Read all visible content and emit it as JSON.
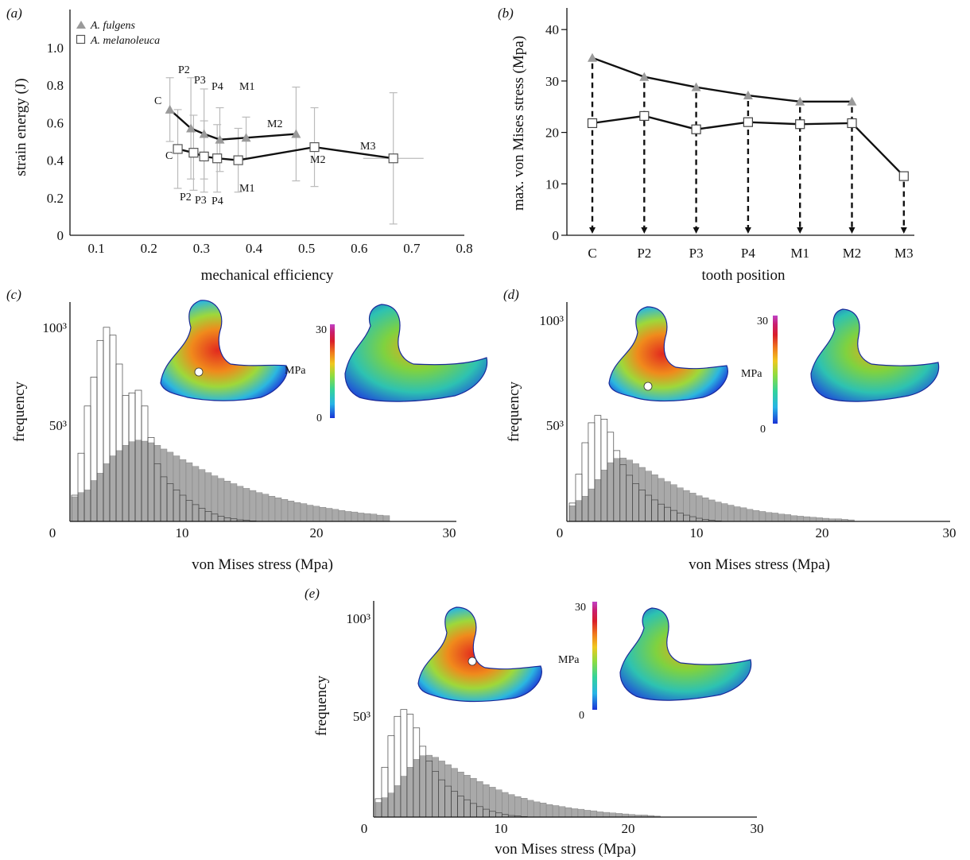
{
  "colors": {
    "fulgens": "#9a9a9a",
    "melanoleuca_face": "#ffffff",
    "line": "#111111",
    "errorbar": "#bbbbbb",
    "hist_fill_grey": "#a9a9a9",
    "hist_outline": "#444444",
    "colorbar": [
      "#1a33d6",
      "#27b3e6",
      "#33d39b",
      "#8fdc3f",
      "#f0c81e",
      "#f0791c",
      "#d91e2a",
      "#c91e70",
      "#c042c6"
    ]
  },
  "chart_data": [
    {
      "panel": "(a)",
      "type": "scatter",
      "xlabel": "mechanical efficiency",
      "ylabel": "strain energy (J)",
      "xlim": [
        0.05,
        0.8
      ],
      "ylim": [
        0,
        1.15
      ],
      "xticks": [
        "0.1",
        "0.2",
        "0.3",
        "0.4",
        "0.5",
        "0.6",
        "0.7",
        "0.8"
      ],
      "yticks": [
        "0",
        "0.2",
        "0.4",
        "0.6",
        "0.8",
        "1.0"
      ],
      "legend": [
        "A. fulgens",
        "A. melanoleuca"
      ],
      "legend_position": "top-left",
      "series": [
        {
          "name": "A. fulgens",
          "marker": "triangle",
          "points": [
            {
              "label": "C",
              "x": 0.24,
              "y": 0.67,
              "err": 0.17
            },
            {
              "label": "P2",
              "x": 0.28,
              "y": 0.57,
              "err": 0.27
            },
            {
              "label": "P3",
              "x": 0.305,
              "y": 0.54,
              "err": 0.24
            },
            {
              "label": "P4",
              "x": 0.335,
              "y": 0.51,
              "err": 0.17
            },
            {
              "label": "M1",
              "x": 0.385,
              "y": 0.52,
              "err": 0.11
            },
            {
              "label": "M2",
              "x": 0.48,
              "y": 0.54,
              "err": 0.25
            }
          ]
        },
        {
          "name": "A. melanoleuca",
          "marker": "square",
          "points": [
            {
              "label": "C",
              "x": 0.255,
              "y": 0.46,
              "err": 0.21
            },
            {
              "label": "P2",
              "x": 0.285,
              "y": 0.44,
              "err": 0.2
            },
            {
              "label": "P3",
              "x": 0.305,
              "y": 0.42,
              "err": 0.19
            },
            {
              "label": "P4",
              "x": 0.33,
              "y": 0.41,
              "err": 0.18
            },
            {
              "label": "M1",
              "x": 0.37,
              "y": 0.4,
              "err": 0.17
            },
            {
              "label": "M2",
              "x": 0.515,
              "y": 0.47,
              "err": 0.21
            },
            {
              "label": "M3",
              "x": 0.665,
              "y": 0.41,
              "err": 0.35
            }
          ]
        }
      ]
    },
    {
      "panel": "(b)",
      "type": "line",
      "xlabel": "tooth position",
      "ylabel": "max. von Mises stress (Mpa)",
      "categories": [
        "C",
        "P2",
        "P3",
        "P4",
        "M1",
        "M2",
        "M3"
      ],
      "ylim": [
        0,
        43
      ],
      "yticks": [
        "0",
        "10",
        "20",
        "30",
        "40"
      ],
      "series": [
        {
          "name": "A. fulgens",
          "marker": "triangle",
          "values": [
            34.5,
            30.8,
            28.8,
            27.2,
            26.0,
            26.0,
            null
          ]
        },
        {
          "name": "A. melanoleuca",
          "marker": "square",
          "values": [
            21.8,
            23.2,
            20.6,
            22.0,
            21.6,
            21.8,
            11.5
          ]
        }
      ]
    },
    {
      "panel": "(c)",
      "type": "bar",
      "xlabel": "von Mises stress (Mpa)",
      "ylabel": "frequency",
      "xlim": [
        0,
        30
      ],
      "xticks": [
        "0",
        "10",
        "20",
        "30"
      ],
      "yticks": [
        "0",
        "50³",
        "100³"
      ],
      "colorbar": {
        "top": "30",
        "bottom": "0",
        "unit": "MPa"
      },
      "series": [
        {
          "name": "grey",
          "values": [
            0.47,
            0.55,
            0.6,
            0.78,
            0.92,
            1.1,
            1.25,
            1.35,
            1.45,
            1.52,
            1.55,
            1.53,
            1.5,
            1.45,
            1.38,
            1.32,
            1.25,
            1.18,
            1.12,
            1.05,
            0.99,
            0.93,
            0.87,
            0.82,
            0.77,
            0.72,
            0.67,
            0.63,
            0.59,
            0.55,
            0.52,
            0.48,
            0.45,
            0.42,
            0.39,
            0.36,
            0.34,
            0.31,
            0.29,
            0.27,
            0.25,
            0.23,
            0.21,
            0.19,
            0.18,
            0.16,
            0.15,
            0.14,
            0.12,
            0.11
          ]
        },
        {
          "name": "outline",
          "values": [
            0.5,
            1.3,
            2.2,
            2.75,
            3.45,
            3.7,
            3.55,
            3.0,
            2.4,
            2.45,
            2.5,
            2.2,
            1.6,
            1.1,
            0.85,
            0.72,
            0.6,
            0.5,
            0.4,
            0.32,
            0.25,
            0.19,
            0.14,
            0.1,
            0.07,
            0.05,
            0.03,
            0.02,
            0.01,
            0.0
          ]
        }
      ]
    },
    {
      "panel": "(d)",
      "type": "bar",
      "xlabel": "von Mises stress (Mpa)",
      "ylabel": "frequency",
      "xlim": [
        0,
        30
      ],
      "xticks": [
        "0",
        "10",
        "20",
        "30"
      ],
      "yticks": [
        "0",
        "50³",
        "100³"
      ],
      "colorbar": {
        "top": "30",
        "bottom": "0",
        "unit": "MPa"
      },
      "series": [
        {
          "name": "grey",
          "values": [
            0.3,
            0.4,
            0.48,
            0.62,
            0.8,
            0.98,
            1.12,
            1.2,
            1.21,
            1.17,
            1.1,
            1.03,
            0.96,
            0.89,
            0.82,
            0.76,
            0.7,
            0.64,
            0.59,
            0.54,
            0.49,
            0.45,
            0.41,
            0.37,
            0.34,
            0.31,
            0.28,
            0.26,
            0.23,
            0.21,
            0.19,
            0.17,
            0.16,
            0.14,
            0.13,
            0.11,
            0.1,
            0.09,
            0.08,
            0.07,
            0.06,
            0.05,
            0.05,
            0.04,
            0.03
          ]
        },
        {
          "name": "outline",
          "values": [
            0.35,
            0.9,
            1.5,
            1.88,
            2.02,
            1.95,
            1.7,
            1.35,
            1.08,
            0.88,
            0.72,
            0.6,
            0.5,
            0.41,
            0.33,
            0.27,
            0.21,
            0.16,
            0.12,
            0.09,
            0.06,
            0.04,
            0.02,
            0.01
          ]
        }
      ]
    },
    {
      "panel": "(e)",
      "type": "bar",
      "xlabel": "von Mises stress (Mpa)",
      "ylabel": "frequency",
      "xlim": [
        0,
        30
      ],
      "xticks": [
        "0",
        "10",
        "20",
        "30"
      ],
      "yticks": [
        "0",
        "50³",
        "100³"
      ],
      "colorbar": {
        "top": "30",
        "bottom": "0",
        "unit": "MPa"
      },
      "series": [
        {
          "name": "grey",
          "values": [
            0.28,
            0.37,
            0.46,
            0.6,
            0.78,
            0.95,
            1.1,
            1.17,
            1.18,
            1.14,
            1.07,
            1.0,
            0.93,
            0.86,
            0.8,
            0.74,
            0.68,
            0.62,
            0.57,
            0.52,
            0.47,
            0.43,
            0.39,
            0.36,
            0.32,
            0.29,
            0.27,
            0.24,
            0.22,
            0.2,
            0.18,
            0.16,
            0.15,
            0.13,
            0.12,
            0.1,
            0.09,
            0.08,
            0.07,
            0.06,
            0.05,
            0.04,
            0.04,
            0.03,
            0.02
          ]
        },
        {
          "name": "outline",
          "values": [
            0.35,
            0.95,
            1.55,
            1.92,
            2.05,
            1.96,
            1.7,
            1.35,
            1.07,
            0.87,
            0.71,
            0.59,
            0.49,
            0.4,
            0.33,
            0.26,
            0.2,
            0.15,
            0.11,
            0.08,
            0.05,
            0.03,
            0.02,
            0.01
          ]
        }
      ]
    }
  ]
}
